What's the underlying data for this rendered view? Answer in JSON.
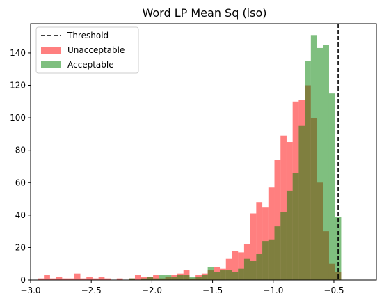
{
  "chart_data": {
    "type": "histogram",
    "title": "Word LP Mean Sq (iso)",
    "xlabel": "",
    "ylabel": "",
    "xlim": [
      -3.0,
      -0.15
    ],
    "ylim": [
      0,
      158
    ],
    "x_ticks": [
      -3.0,
      -2.5,
      -2.0,
      -1.5,
      -1.0,
      -0.5
    ],
    "x_tick_labels": [
      "−3.0",
      "−2.5",
      "−2.0",
      "−1.5",
      "−1.0",
      "−0.5"
    ],
    "y_ticks": [
      0,
      20,
      40,
      60,
      80,
      100,
      120,
      140
    ],
    "y_tick_labels": [
      "0",
      "20",
      "40",
      "60",
      "80",
      "100",
      "120",
      "140"
    ],
    "bin_start": -2.94,
    "bin_width": 0.05,
    "legend_position": "top-left",
    "threshold": {
      "name": "Threshold",
      "x": -0.465,
      "color": "#000000",
      "style": "dashed"
    },
    "series": [
      {
        "name": "Unacceptable",
        "color": "#ff0000",
        "alpha": 0.5,
        "values": [
          1,
          3,
          1,
          2,
          1,
          1,
          4,
          1,
          2,
          1,
          2,
          1,
          0,
          1,
          0,
          1,
          3,
          2,
          2,
          3,
          1,
          2,
          3,
          4,
          6,
          1,
          3,
          4,
          6,
          8,
          7,
          13,
          18,
          17,
          22,
          41,
          48,
          45,
          57,
          74,
          89,
          85,
          110,
          111,
          120,
          100,
          60,
          30,
          10,
          5
        ]
      },
      {
        "name": "Acceptable",
        "color": "#008000",
        "alpha": 0.5,
        "values": [
          0,
          0,
          0,
          0,
          0,
          0,
          0,
          0,
          0,
          0,
          0,
          0,
          0,
          0,
          0,
          1,
          0,
          1,
          2,
          1,
          3,
          3,
          2,
          3,
          3,
          2,
          2,
          3,
          8,
          5,
          6,
          6,
          5,
          7,
          13,
          12,
          16,
          24,
          25,
          33,
          42,
          55,
          66,
          95,
          135,
          151,
          143,
          145,
          115,
          39
        ]
      }
    ]
  }
}
